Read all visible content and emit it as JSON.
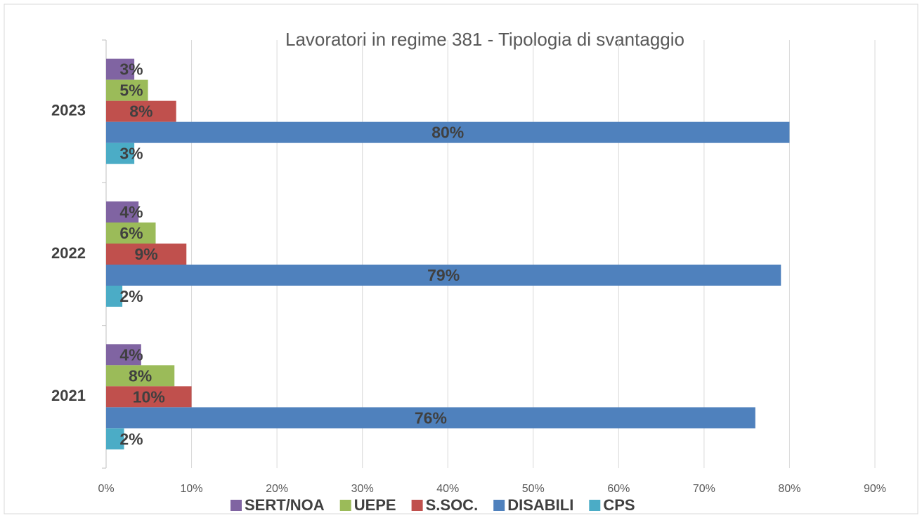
{
  "chart_data": {
    "type": "bar",
    "orientation": "horizontal",
    "title": "Lavoratori in regime 381 - Tipologia di svantaggio",
    "categories": [
      "2021",
      "2022",
      "2023"
    ],
    "series": [
      {
        "name": "SERT/NOA",
        "color": "#8064a2",
        "values": [
          4.1,
          3.8,
          3.3
        ],
        "value_labels": [
          "4%",
          "4%",
          "3%"
        ]
      },
      {
        "name": "UEPE",
        "color": "#9bbb59",
        "values": [
          8.0,
          5.8,
          4.9
        ],
        "value_labels": [
          "8%",
          "6%",
          "5%"
        ]
      },
      {
        "name": "S.SOC.",
        "color": "#c0504d",
        "values": [
          10,
          9.4,
          8.2
        ],
        "value_labels": [
          "10%",
          "9%",
          "8%"
        ]
      },
      {
        "name": "DISABILI",
        "color": "#4f81bd",
        "values": [
          76,
          79,
          80
        ],
        "value_labels": [
          "76%",
          "79%",
          "80%"
        ]
      },
      {
        "name": "CPS",
        "color": "#4bacc6",
        "values": [
          2.1,
          1.9,
          3.3
        ],
        "value_labels": [
          "2%",
          "2%",
          "3%"
        ]
      }
    ],
    "xlim": [
      0,
      90
    ],
    "xticks": [
      {
        "value": 0,
        "label": "0%"
      },
      {
        "value": 10,
        "label": "10%"
      },
      {
        "value": 20,
        "label": "20%"
      },
      {
        "value": 30,
        "label": "30%"
      },
      {
        "value": 40,
        "label": "40%"
      },
      {
        "value": 50,
        "label": "50%"
      },
      {
        "value": 60,
        "label": "60%"
      },
      {
        "value": 70,
        "label": "70%"
      },
      {
        "value": 80,
        "label": "80%"
      },
      {
        "value": 90,
        "label": "90%"
      }
    ],
    "grid": true,
    "legend": "bottom"
  }
}
